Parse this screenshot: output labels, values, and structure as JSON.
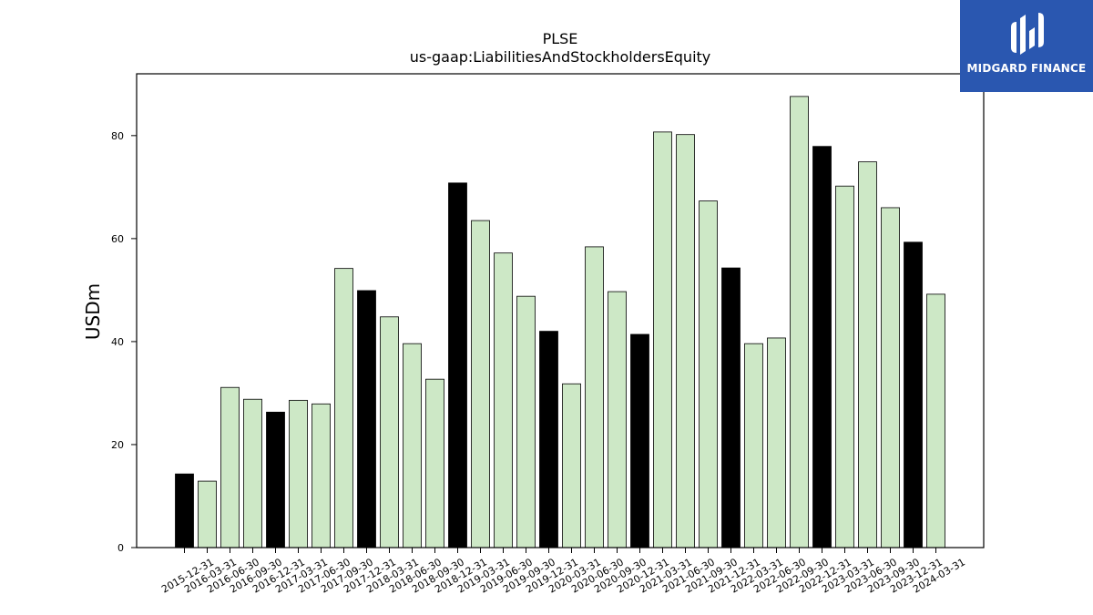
{
  "logo": {
    "text": "MIDGARD FINANCE",
    "background": "#2a57b0"
  },
  "chart_data": {
    "type": "bar",
    "title": "PLSE",
    "subtitle": "us-gaap:LiabilitiesAndStockholdersEquity",
    "xlabel": "",
    "ylabel": "USDm",
    "ylim": [
      0,
      92
    ],
    "yticks": [
      0,
      20,
      40,
      60,
      80
    ],
    "grid": false,
    "colors": {
      "year_end": "#000000",
      "quarter": "#cde8c6",
      "edge": "#000000"
    },
    "categories": [
      "2015-12-31",
      "2016-03-31",
      "2016-06-30",
      "2016-09-30",
      "2016-12-31",
      "2017-03-31",
      "2017-06-30",
      "2017-09-30",
      "2017-12-31",
      "2018-03-31",
      "2018-06-30",
      "2018-09-30",
      "2018-12-31",
      "2019-03-31",
      "2019-06-30",
      "2019-09-30",
      "2019-12-31",
      "2020-03-31",
      "2020-06-30",
      "2020-09-30",
      "2020-12-31",
      "2021-03-31",
      "2021-06-30",
      "2021-09-30",
      "2021-12-31",
      "2022-03-31",
      "2022-06-30",
      "2022-09-30",
      "2022-12-31",
      "2023-03-31",
      "2023-06-30",
      "2023-09-30",
      "2023-12-31",
      "2024-03-31"
    ],
    "values": [
      14.3,
      12.9,
      31.1,
      28.8,
      26.3,
      28.6,
      27.9,
      54.2,
      49.9,
      44.8,
      39.6,
      32.7,
      70.8,
      63.5,
      57.2,
      48.8,
      42.0,
      31.8,
      58.4,
      49.7,
      41.4,
      80.7,
      80.2,
      67.3,
      54.3,
      39.6,
      40.7,
      87.6,
      77.9,
      70.2,
      74.9,
      66.0,
      59.3,
      49.2
    ]
  }
}
